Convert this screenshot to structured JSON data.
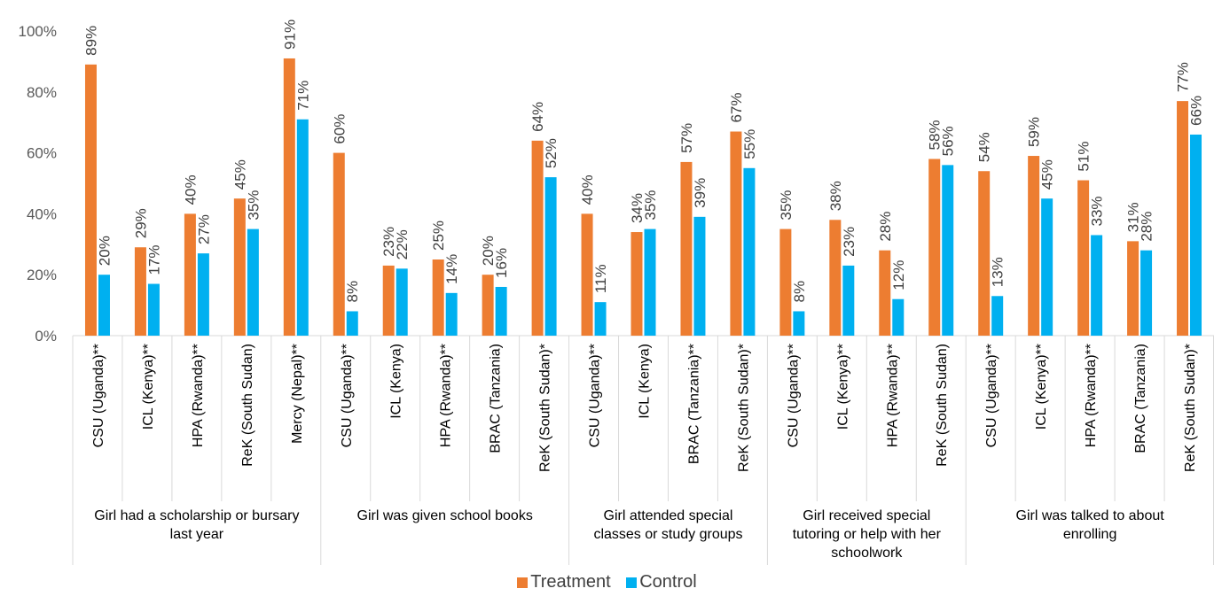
{
  "colors": {
    "treatment": "#ED7D31",
    "control": "#00B0F0",
    "axis": "#D9D9D9"
  },
  "legend": {
    "treatment_label": "Treatment",
    "control_label": "Control"
  },
  "chart_data": {
    "type": "bar",
    "ylim": [
      0,
      100
    ],
    "yticks": [
      "0%",
      "20%",
      "40%",
      "60%",
      "80%",
      "100%"
    ],
    "grid": false,
    "legend_position": "bottom",
    "groups": [
      {
        "label": "Girl had a scholarship or bursary last year",
        "categories": [
          "CSU (Uganda)**",
          "ICL (Kenya)**",
          "HPA (Rwanda)**",
          "ReK (South Sudan)",
          "Mercy (Nepal)**"
        ],
        "treatment": [
          89,
          29,
          40,
          45,
          91
        ],
        "control": [
          20,
          17,
          27,
          35,
          71
        ]
      },
      {
        "label": "Girl was given school books",
        "categories": [
          "CSU (Uganda)**",
          "ICL (Kenya)",
          "HPA (Rwanda)**",
          "BRAC (Tanzania)",
          "ReK (South Sudan)*"
        ],
        "treatment": [
          60,
          23,
          25,
          20,
          64
        ],
        "control": [
          8,
          22,
          14,
          16,
          52
        ]
      },
      {
        "label": "Girl attended special classes or study groups",
        "categories": [
          "CSU (Uganda)**",
          "ICL (Kenya)",
          "BRAC (Tanzania)**",
          "ReK (South Sudan)*"
        ],
        "treatment": [
          40,
          34,
          57,
          67
        ],
        "control": [
          11,
          35,
          39,
          55
        ]
      },
      {
        "label": "Girl received special tutoring or help with her schoolwork",
        "categories": [
          "CSU (Uganda)**",
          "ICL (Kenya)**",
          "HPA (Rwanda)**",
          "ReK (South Sudan)"
        ],
        "treatment": [
          35,
          38,
          28,
          58
        ],
        "control": [
          8,
          23,
          12,
          56
        ]
      },
      {
        "label": "Girl was talked to about enrolling",
        "categories": [
          "CSU (Uganda)**",
          "ICL (Kenya)**",
          "HPA (Rwanda)**",
          "BRAC (Tanzania)",
          "ReK (South Sudan)*"
        ],
        "treatment": [
          54,
          59,
          51,
          31,
          77
        ],
        "control": [
          13,
          45,
          33,
          28,
          66
        ]
      }
    ],
    "series": [
      {
        "name": "Treatment"
      },
      {
        "name": "Control"
      }
    ]
  }
}
